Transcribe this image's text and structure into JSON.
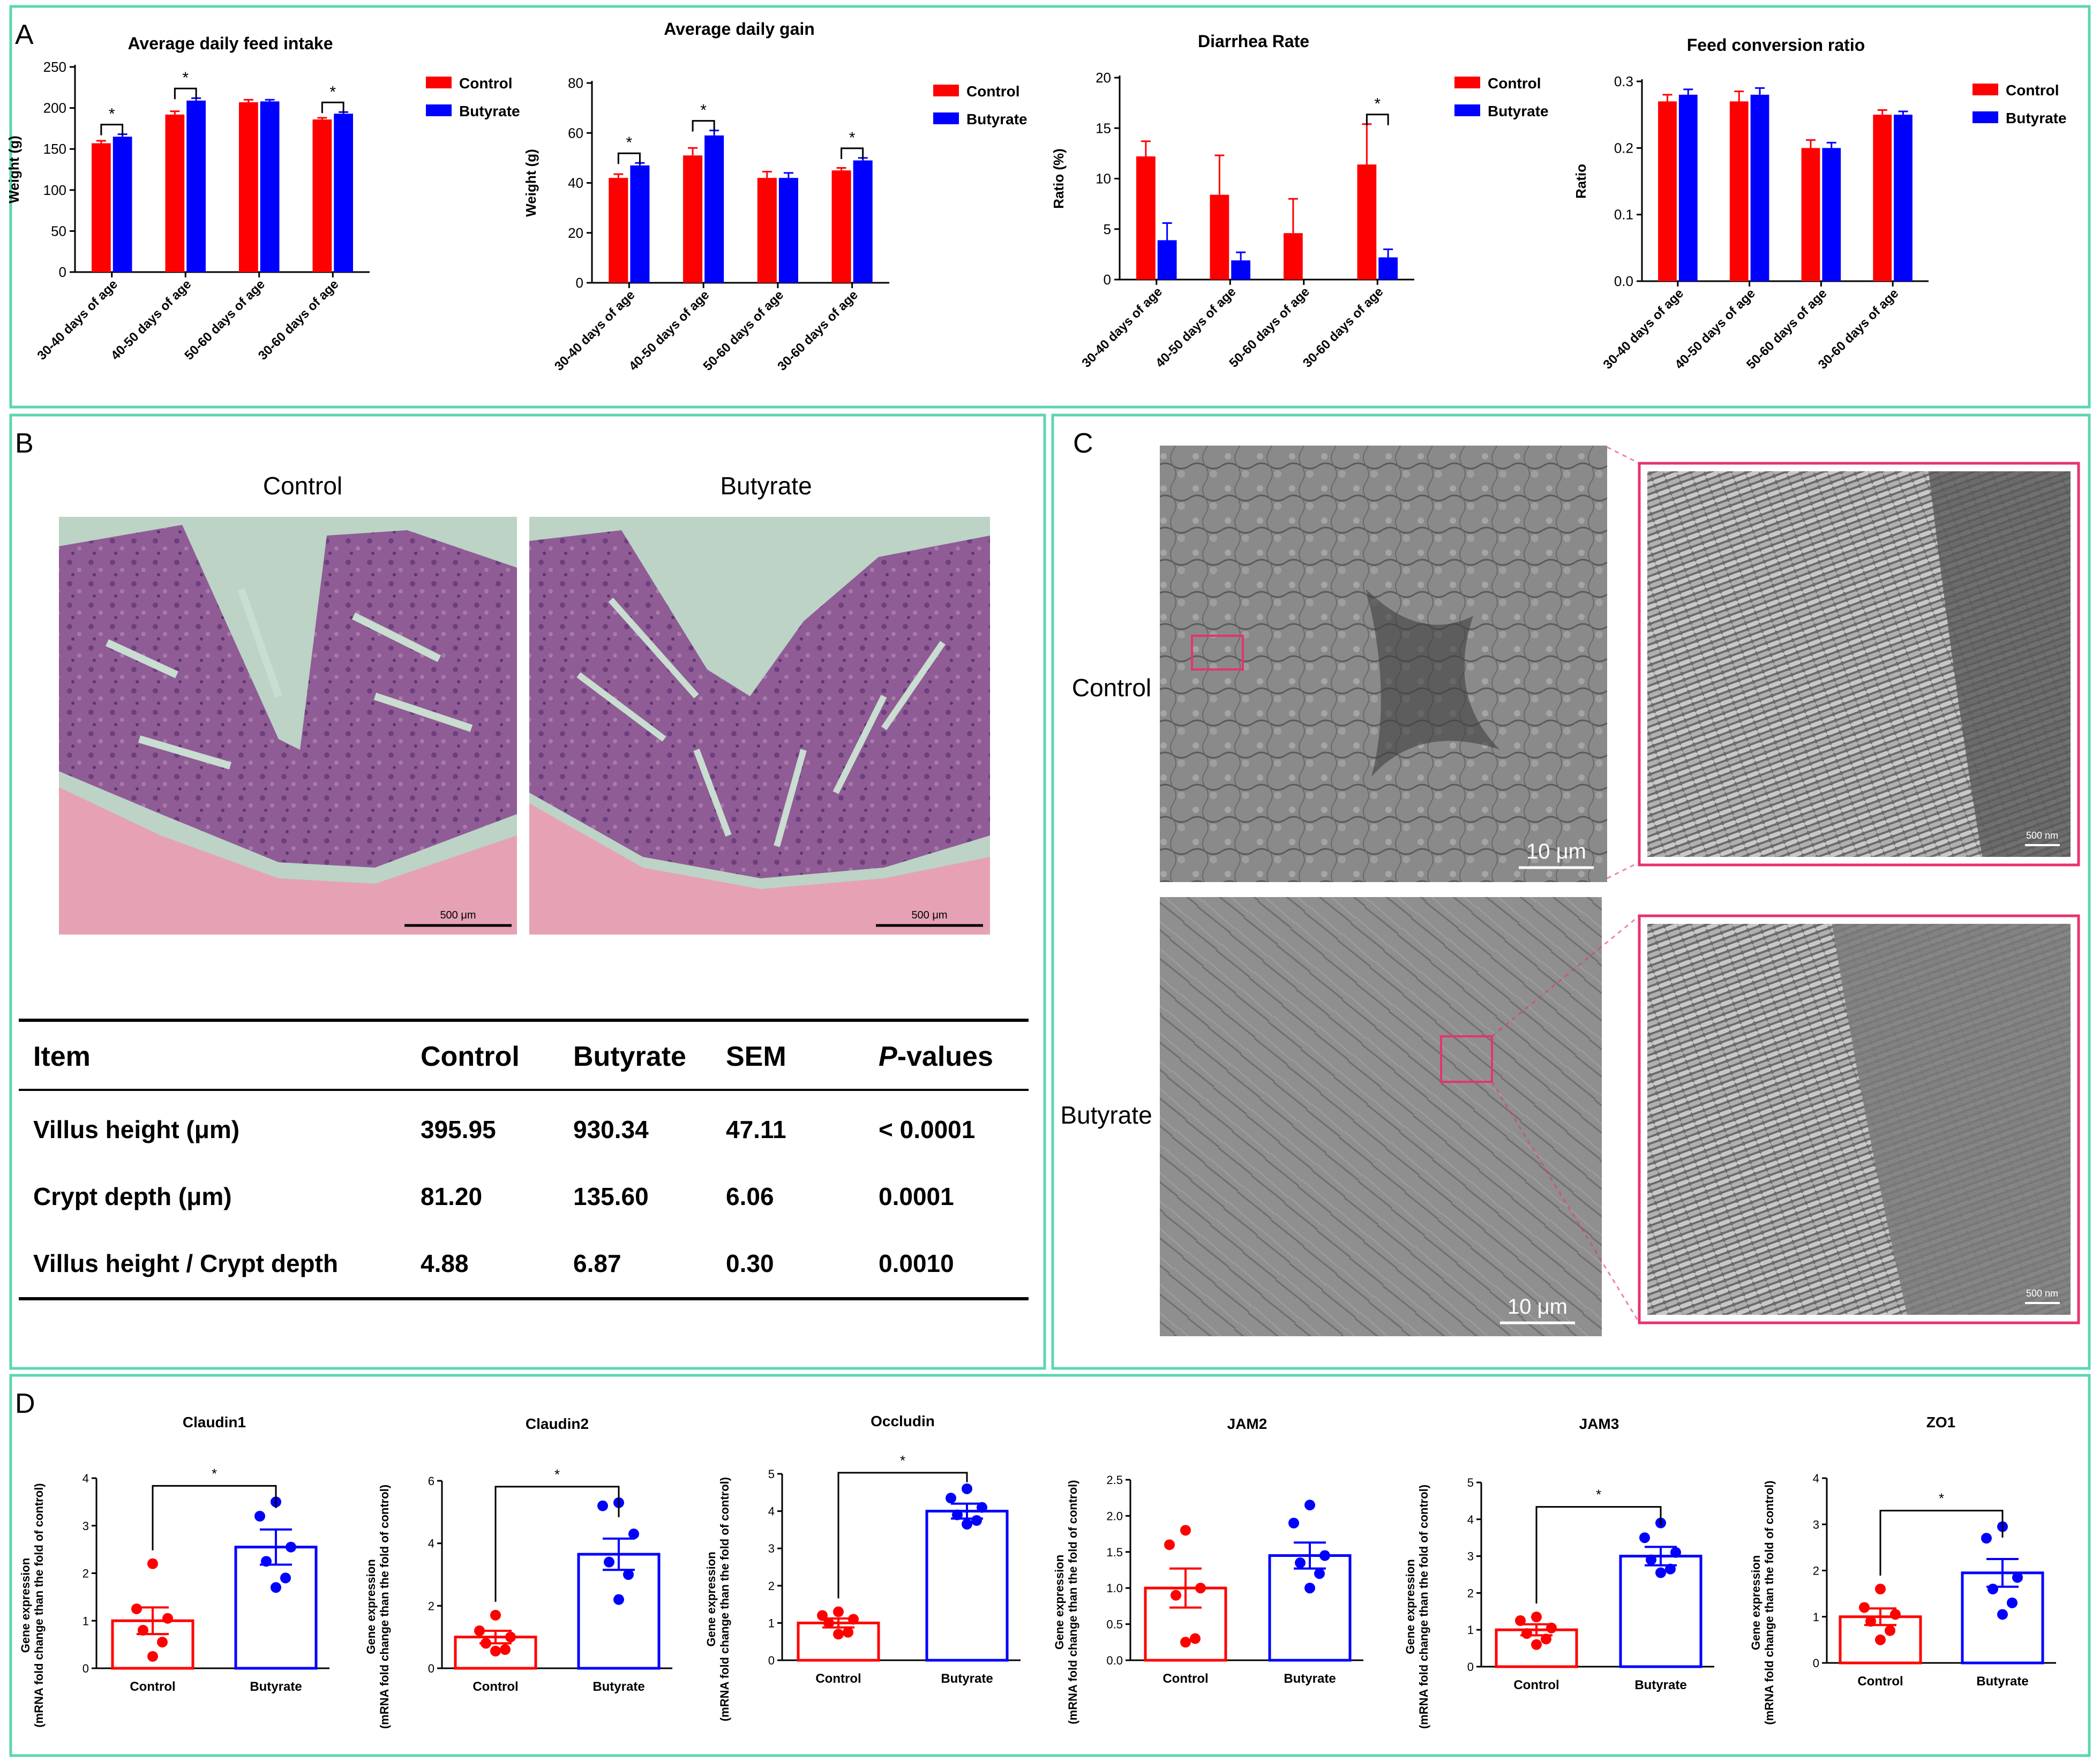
{
  "colors": {
    "control": "#ff0000",
    "butyrate": "#0000ff",
    "frame": "#5cd6b2",
    "zoom": "#e8336b"
  },
  "panels": {
    "A": "A",
    "B": "B",
    "C": "C",
    "D": "D"
  },
  "legend": {
    "control": "Control",
    "butyrate": "Butyrate"
  },
  "histology": {
    "control_title": "Control",
    "butyrate_title": "Butyrate",
    "scale_label": "500 μm"
  },
  "sem": {
    "control_label": "Control",
    "butyrate_label": "Butyrate",
    "scale_large": "10 μm",
    "scale_small": "500 nm"
  },
  "table": {
    "headers": [
      "Item",
      "Control",
      "Butyrate",
      "SEM",
      "P-values"
    ],
    "p_italic": "P",
    "p_rest": "-values",
    "rows": [
      [
        "Villus height (μm)",
        "395.95",
        "930.34",
        "47.11",
        "< 0.0001"
      ],
      [
        "Crypt depth (μm)",
        "81.20",
        "135.60",
        "6.06",
        "0.0001"
      ],
      [
        "Villus height / Crypt depth",
        "4.88",
        "6.87",
        "0.30",
        "0.0010"
      ]
    ]
  },
  "chart_data": [
    {
      "type": "bar",
      "title": "Average daily feed intake",
      "ylabel": "Weight (g)",
      "categories": [
        "30-40 days of age",
        "40-50 days of age",
        "50-60 days of age",
        "30-60 days of age"
      ],
      "ylim": [
        0,
        250
      ],
      "ticks": [
        0,
        50,
        100,
        150,
        200,
        250
      ],
      "series": [
        {
          "name": "Control",
          "values": [
            157,
            192,
            207,
            186
          ],
          "errors": [
            3,
            4,
            3,
            2
          ]
        },
        {
          "name": "Butyrate",
          "values": [
            165,
            209,
            208,
            193
          ],
          "errors": [
            3,
            3,
            2,
            2
          ]
        }
      ],
      "sig": [
        0,
        1,
        3
      ],
      "sig_label": "*"
    },
    {
      "type": "bar",
      "title": "Average daily gain",
      "ylabel": "Weight (g)",
      "categories": [
        "30-40 days of age",
        "40-50 days of age",
        "50-60 days of age",
        "30-60 days of age"
      ],
      "ylim": [
        0,
        80
      ],
      "ticks": [
        0,
        20,
        40,
        60,
        80
      ],
      "series": [
        {
          "name": "Control",
          "values": [
            42,
            51,
            42,
            45
          ],
          "errors": [
            1.5,
            3,
            2.5,
            1
          ]
        },
        {
          "name": "Butyrate",
          "values": [
            47,
            59,
            42,
            49
          ],
          "errors": [
            1,
            2,
            2,
            1
          ]
        }
      ],
      "sig": [
        0,
        1,
        3
      ],
      "sig_label": "*"
    },
    {
      "type": "bar",
      "title": "Diarrhea Rate",
      "ylabel": "Ratio (%)",
      "categories": [
        "30-40 days of age",
        "40-50 days of age",
        "50-60 days of age",
        "30-60 days of age"
      ],
      "ylim": [
        0,
        20
      ],
      "ticks": [
        0,
        5,
        10,
        15,
        20
      ],
      "series": [
        {
          "name": "Control",
          "values": [
            12.2,
            8.4,
            4.6,
            11.4
          ],
          "errors": [
            1.5,
            3.9,
            3.4,
            4.0
          ]
        },
        {
          "name": "Butyrate",
          "values": [
            3.9,
            1.9,
            0,
            2.2
          ],
          "errors": [
            1.7,
            0.8,
            0,
            0.8
          ]
        }
      ],
      "sig": [
        3
      ],
      "sig_label": "*"
    },
    {
      "type": "bar",
      "title": "Feed conversion ratio",
      "ylabel": "Ratio",
      "categories": [
        "30-40 days of age",
        "40-50 days of age",
        "50-60 days of age",
        "30-60 days of age"
      ],
      "ylim": [
        0,
        0.3
      ],
      "ticks": [
        "0.0",
        "0.1",
        "0.2",
        "0.3"
      ],
      "series": [
        {
          "name": "Control",
          "values": [
            0.27,
            0.27,
            0.2,
            0.25
          ],
          "errors": [
            0.01,
            0.015,
            0.012,
            0.007
          ]
        },
        {
          "name": "Butyrate",
          "values": [
            0.28,
            0.28,
            0.2,
            0.25
          ],
          "errors": [
            0.008,
            0.01,
            0.008,
            0.005
          ]
        }
      ],
      "sig": [],
      "sig_label": "*"
    },
    {
      "type": "scatter-bar",
      "title": "Claudin1",
      "ylabel_line1": "Gene expression",
      "ylabel_line2": "(mRNA fold change than the fold of control)",
      "categories": [
        "Control",
        "Butyrate"
      ],
      "ylim": [
        0,
        4
      ],
      "ticks": [
        0,
        1,
        2,
        3,
        4
      ],
      "means": [
        1.0,
        2.55
      ],
      "sems": [
        0.28,
        0.37
      ],
      "points": [
        [
          2.2,
          1.25,
          1.05,
          0.8,
          0.55,
          0.25
        ],
        [
          3.5,
          3.2,
          2.55,
          2.25,
          1.9,
          1.7
        ]
      ],
      "sig": true,
      "sig_label": "*"
    },
    {
      "type": "scatter-bar",
      "title": "Claudin2",
      "ylabel_line1": "Gene expression",
      "ylabel_line2": "(mRNA fold change than the fold of control)",
      "categories": [
        "Control",
        "Butyrate"
      ],
      "ylim": [
        0,
        6
      ],
      "ticks": [
        0,
        2,
        4,
        6
      ],
      "means": [
        1.0,
        3.65
      ],
      "sems": [
        0.2,
        0.5
      ],
      "points": [
        [
          1.7,
          1.2,
          1.0,
          0.8,
          0.6,
          0.55
        ],
        [
          5.3,
          5.2,
          4.3,
          3.4,
          3.0,
          2.2
        ]
      ],
      "sig": true,
      "sig_label": "*"
    },
    {
      "type": "scatter-bar",
      "title": "Occludin",
      "ylabel_line1": "Gene expression",
      "ylabel_line2": "(mRNA fold change than the fold of control)",
      "categories": [
        "Control",
        "Butyrate"
      ],
      "ylim": [
        0,
        5
      ],
      "ticks": [
        0,
        1,
        2,
        3,
        4,
        5
      ],
      "means": [
        1.0,
        4.0
      ],
      "sems": [
        0.12,
        0.2
      ],
      "points": [
        [
          1.3,
          1.2,
          1.1,
          1.0,
          0.75,
          0.7
        ],
        [
          4.6,
          4.35,
          4.1,
          3.9,
          3.75,
          3.65
        ]
      ],
      "sig": true,
      "sig_label": "*"
    },
    {
      "type": "scatter-bar",
      "title": "JAM2",
      "ylabel_line1": "Gene expression",
      "ylabel_line2": "(mRNA fold change than the fold of control)",
      "categories": [
        "Control",
        "Butyrate"
      ],
      "ylim": [
        0,
        2.5
      ],
      "ticks": [
        "0.0",
        "0.5",
        "1.0",
        "1.5",
        "2.0",
        "2.5"
      ],
      "means": [
        1.0,
        1.45
      ],
      "sems": [
        0.27,
        0.18
      ],
      "points": [
        [
          1.8,
          1.6,
          1.0,
          0.9,
          0.3,
          0.25
        ],
        [
          2.15,
          1.9,
          1.45,
          1.35,
          1.2,
          1.0
        ]
      ],
      "sig": false,
      "sig_label": "*"
    },
    {
      "type": "scatter-bar",
      "title": "JAM3",
      "ylabel_line1": "Gene expression",
      "ylabel_line2": "(mRNA fold change than the fold of control)",
      "categories": [
        "Control",
        "Butyrate"
      ],
      "ylim": [
        0,
        5
      ],
      "ticks": [
        0,
        1,
        2,
        3,
        4,
        5
      ],
      "means": [
        1.0,
        3.0
      ],
      "sems": [
        0.15,
        0.25
      ],
      "points": [
        [
          1.35,
          1.25,
          1.05,
          0.9,
          0.75,
          0.6
        ],
        [
          3.9,
          3.5,
          3.1,
          2.9,
          2.65,
          2.55
        ]
      ],
      "sig": true,
      "sig_label": "*"
    },
    {
      "type": "scatter-bar",
      "title": "ZO1",
      "ylabel_line1": "Gene expression",
      "ylabel_line2": "(mRNA fold change than the fold of control)",
      "categories": [
        "Control",
        "Butyrate"
      ],
      "ylim": [
        0,
        4
      ],
      "ticks": [
        0,
        1,
        2,
        3,
        4
      ],
      "means": [
        1.0,
        1.95
      ],
      "sems": [
        0.18,
        0.3
      ],
      "points": [
        [
          1.6,
          1.2,
          1.05,
          0.9,
          0.7,
          0.5
        ],
        [
          2.95,
          2.7,
          1.85,
          1.6,
          1.3,
          1.05
        ]
      ],
      "sig": true,
      "sig_label": "*"
    }
  ]
}
